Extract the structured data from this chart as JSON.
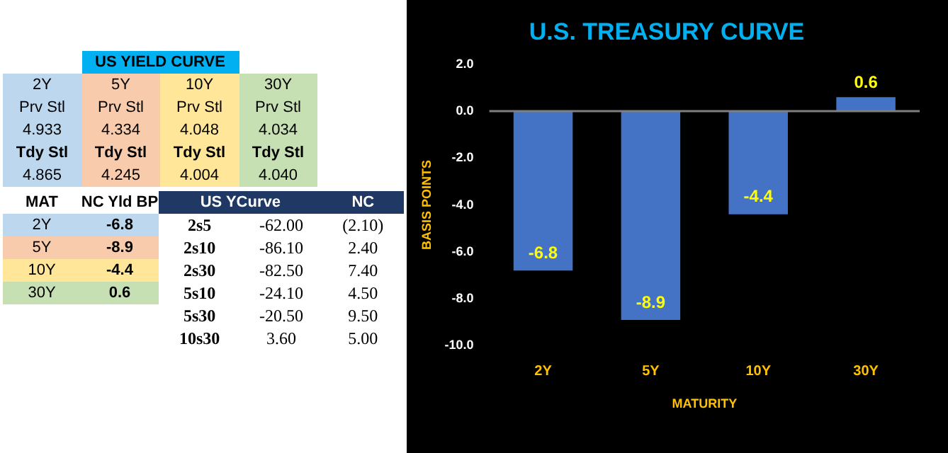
{
  "chart_data": [
    {
      "type": "other",
      "title": "US YIELD CURVE",
      "colors": [
        "#bdd7ee",
        "#f8cbad",
        "#ffe699",
        "#c6e0b4"
      ],
      "annotations": [
        "2Y",
        "5Y",
        "10Y",
        "30Y",
        "Prv Stl",
        "Prv Stl",
        "Prv Stl",
        "Prv Stl",
        "4.933",
        "4.334",
        "4.048",
        "4.034",
        "Tdy Stl",
        "Tdy Stl",
        "Tdy Stl",
        "Tdy Stl",
        "4.865",
        "4.245",
        "4.004",
        "4.040"
      ]
    },
    {
      "type": "other",
      "colors": [
        "#bdd7ee",
        "#f8cbad",
        "#ffe699",
        "#c6e0b4"
      ],
      "annotations": [
        "MAT",
        "NC Yld  BP",
        "2Y",
        "-6.8",
        "5Y",
        "-8.9",
        "10Y",
        "-4.4",
        "30Y",
        "0.6"
      ]
    },
    {
      "type": "other",
      "annotations": [
        "US YCurve",
        "NC",
        "2s5",
        "-62.00",
        "(2.10)",
        "2s10",
        "-86.10",
        "2.40",
        "2s30",
        "-82.50",
        "7.40",
        "5s10",
        "-24.10",
        "4.50",
        "5s30",
        "-20.50",
        "9.50",
        "10s30",
        "3.60",
        "5.00"
      ]
    },
    {
      "type": "bar",
      "title": "U.S. TREASURY CURVE",
      "xlabel": "MATURITY",
      "ylabel": "BASIS POINTS",
      "categories": [
        "2Y",
        "5Y",
        "10Y",
        "30Y"
      ],
      "values": [
        -6.8,
        -8.9,
        -4.4,
        0.6
      ],
      "color": "#4472c4",
      "ylim": [
        -10,
        2
      ],
      "yticks": [
        {
          "value": -10,
          "label": "-10.0"
        },
        {
          "value": -8,
          "label": "-8.0"
        },
        {
          "value": -6,
          "label": "-6.0"
        },
        {
          "value": -4,
          "label": "-4.0"
        },
        {
          "value": -2,
          "label": "-2.0"
        },
        {
          "value": 0,
          "label": "0.0"
        },
        {
          "value": 2,
          "label": "2.0"
        }
      ],
      "legend": false,
      "data_labels": true,
      "ref_lines": [
        {
          "axis": "y",
          "value": 0,
          "color": "#7f7f7f"
        }
      ]
    }
  ]
}
